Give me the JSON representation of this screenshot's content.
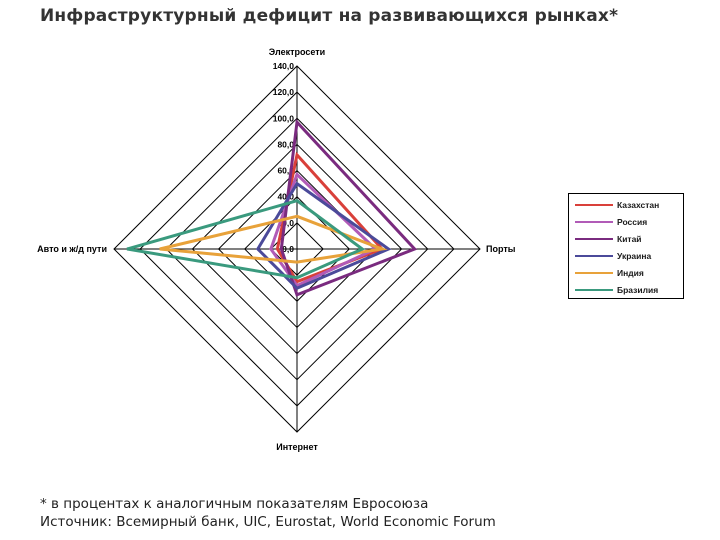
{
  "title": "Инфраструктурный дефицит на развивающихся рынках*",
  "footnote": "* в процентах к аналогичным показателям Евросоюза",
  "source": "Источник: Всемирный банк, UIC, Eurostat, World Economic Forum",
  "chart_data": {
    "type": "radar",
    "axes": [
      "Электросети",
      "Порты",
      "Интернет",
      "Авто и ж/д пути"
    ],
    "tick_labels": [
      "0,0",
      "20,0",
      "40,0",
      "60,0",
      "80,0",
      "100,0",
      "120,0",
      "140,0"
    ],
    "rlim": [
      0,
      140
    ],
    "grid": true,
    "legend_position": "right",
    "series": [
      {
        "name": "Казахстан",
        "color": "#d9403a",
        "values": [
          72,
          65,
          25,
          15
        ]
      },
      {
        "name": "Россия",
        "color": "#b15bb7",
        "values": [
          57,
          60,
          28,
          20
        ]
      },
      {
        "name": "Китай",
        "color": "#7a2b7f",
        "values": [
          97,
          90,
          35,
          12
        ]
      },
      {
        "name": "Украина",
        "color": "#4b4a9a",
        "values": [
          50,
          70,
          30,
          30
        ]
      },
      {
        "name": "Индия",
        "color": "#e8a23a",
        "values": [
          25,
          65,
          10,
          105
        ]
      },
      {
        "name": "Бразилия",
        "color": "#3a9a7e",
        "values": [
          37,
          50,
          22,
          130
        ]
      }
    ]
  }
}
